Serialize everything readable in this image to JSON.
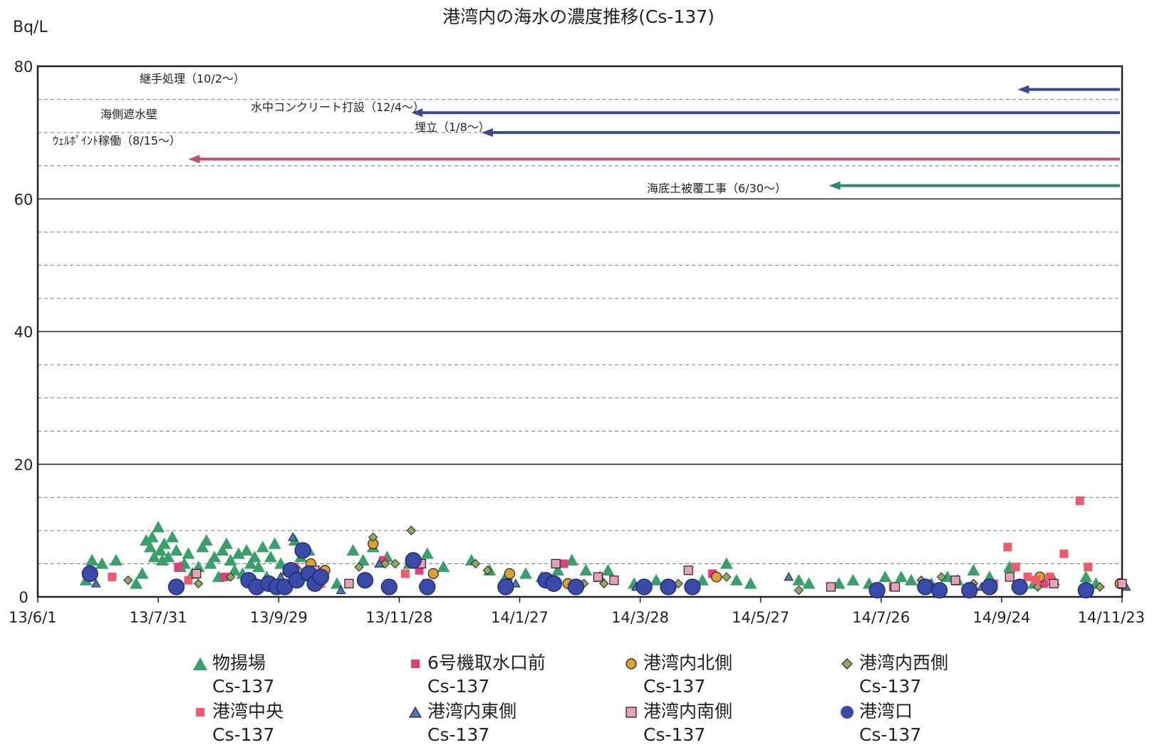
{
  "chart_data": {
    "type": "scatter",
    "title": "港湾内の海水の濃度推移(Cs-137)",
    "ylabel": "Bq/L",
    "ylim": [
      0,
      80
    ],
    "yticks": [
      "0",
      "20",
      "40",
      "60",
      "80"
    ],
    "xlim": [
      "2013-06-01",
      "2014-11-23"
    ],
    "xticks": [
      {
        "date": "2013-06-01",
        "label": "13/6/1"
      },
      {
        "date": "2013-07-31",
        "label": "13/7/31"
      },
      {
        "date": "2013-09-29",
        "label": "13/9/29"
      },
      {
        "date": "2013-11-28",
        "label": "13/11/28"
      },
      {
        "date": "2014-01-27",
        "label": "14/1/27"
      },
      {
        "date": "2014-03-28",
        "label": "14/3/28"
      },
      {
        "date": "2014-05-27",
        "label": "14/5/27"
      },
      {
        "date": "2014-07-26",
        "label": "14/7/26"
      },
      {
        "date": "2014-09-24",
        "label": "14/9/24"
      },
      {
        "date": "2014-11-23",
        "label": "14/11/23"
      }
    ],
    "grid": true,
    "legend_position": "bottom",
    "annotations": [
      {
        "text": "継手処理（10/2～）",
        "start_date": "2014-10-02",
        "y": 76.5,
        "color": "#3b4a8c"
      },
      {
        "text": "水中コンクリート打設（12/4～）",
        "start_date": "2013-12-04",
        "y": 73,
        "color": "#3b4a8c"
      },
      {
        "text": "埋立（1/8～）",
        "start_date": "2014-01-08",
        "y": 70,
        "color": "#3b4a8c"
      },
      {
        "text": "海側遮水壁",
        "start_date": "",
        "y": 73,
        "color": "#222222"
      },
      {
        "text": "ｳｪﾙﾎﾟｲﾝﾄ稼働（8/15～）",
        "start_date": "2013-08-15",
        "y": 66,
        "color": "#c0506a"
      },
      {
        "text": "海底土被覆工事（6/30～）",
        "start_date": "2014-06-30",
        "y": 62,
        "color": "#2e8b6a"
      }
    ],
    "series": [
      {
        "name": "物揚場",
        "unit_label": "Cs-137",
        "marker": "triangle",
        "color": "#3aa06a",
        "points": [
          [
            "2013-06-25",
            2.5
          ],
          [
            "2013-06-28",
            5.5
          ],
          [
            "2013-07-03",
            5
          ],
          [
            "2013-07-10",
            5.5
          ],
          [
            "2013-07-20",
            2
          ],
          [
            "2013-07-23",
            3.5
          ],
          [
            "2013-07-25",
            8.5
          ],
          [
            "2013-07-27",
            7.5
          ],
          [
            "2013-07-28",
            9
          ],
          [
            "2013-07-29",
            6
          ],
          [
            "2013-07-31",
            10.5
          ],
          [
            "2013-08-01",
            7
          ],
          [
            "2013-08-02",
            5.5
          ],
          [
            "2013-08-03",
            8
          ],
          [
            "2013-08-05",
            6
          ],
          [
            "2013-08-07",
            9
          ],
          [
            "2013-08-09",
            7
          ],
          [
            "2013-08-11",
            4.5
          ],
          [
            "2013-08-13",
            5
          ],
          [
            "2013-08-15",
            6.5
          ],
          [
            "2013-08-17",
            3.5
          ],
          [
            "2013-08-20",
            4.5
          ],
          [
            "2013-08-22",
            7.5
          ],
          [
            "2013-08-24",
            8.5
          ],
          [
            "2013-08-26",
            5
          ],
          [
            "2013-08-28",
            6
          ],
          [
            "2013-08-30",
            3
          ],
          [
            "2013-09-01",
            7
          ],
          [
            "2013-09-03",
            8
          ],
          [
            "2013-09-05",
            5.5
          ],
          [
            "2013-09-07",
            4
          ],
          [
            "2013-09-09",
            6.5
          ],
          [
            "2013-09-11",
            3.5
          ],
          [
            "2013-09-13",
            7
          ],
          [
            "2013-09-15",
            5
          ],
          [
            "2013-09-17",
            6
          ],
          [
            "2013-09-19",
            4.5
          ],
          [
            "2013-09-21",
            7.5
          ],
          [
            "2013-09-23",
            3
          ],
          [
            "2013-09-25",
            6
          ],
          [
            "2013-09-27",
            8
          ],
          [
            "2013-09-30",
            5
          ],
          [
            "2013-10-03",
            4
          ],
          [
            "2013-10-07",
            8.5
          ],
          [
            "2013-10-10",
            6
          ],
          [
            "2013-10-14",
            7
          ],
          [
            "2013-10-20",
            3
          ],
          [
            "2013-10-28",
            2
          ],
          [
            "2013-11-05",
            7
          ],
          [
            "2013-11-10",
            5.5
          ],
          [
            "2013-11-15",
            7.5
          ],
          [
            "2013-11-22",
            6
          ],
          [
            "2013-12-03",
            5
          ],
          [
            "2013-12-12",
            6.5
          ],
          [
            "2013-12-20",
            4.5
          ],
          [
            "2014-01-03",
            5.5
          ],
          [
            "2014-01-12",
            4
          ],
          [
            "2014-01-20",
            3
          ],
          [
            "2014-01-30",
            3.5
          ],
          [
            "2014-02-07",
            3
          ],
          [
            "2014-02-15",
            4
          ],
          [
            "2014-02-22",
            5.5
          ],
          [
            "2014-03-01",
            4
          ],
          [
            "2014-03-08",
            3
          ],
          [
            "2014-03-12",
            4
          ],
          [
            "2014-03-25",
            2
          ],
          [
            "2014-04-05",
            2.5
          ],
          [
            "2014-04-28",
            2.5
          ],
          [
            "2014-05-10",
            5
          ],
          [
            "2014-05-15",
            2.5
          ],
          [
            "2014-05-22",
            2
          ],
          [
            "2014-06-15",
            2.5
          ],
          [
            "2014-06-20",
            2
          ],
          [
            "2014-07-05",
            2
          ],
          [
            "2014-07-12",
            2.5
          ],
          [
            "2014-07-20",
            2
          ],
          [
            "2014-07-28",
            3
          ],
          [
            "2014-08-05",
            3
          ],
          [
            "2014-08-10",
            2.5
          ],
          [
            "2014-08-20",
            2
          ],
          [
            "2014-08-28",
            3
          ],
          [
            "2014-09-02",
            2.5
          ],
          [
            "2014-09-10",
            4
          ],
          [
            "2014-09-18",
            3
          ],
          [
            "2014-09-28",
            4.5
          ],
          [
            "2014-10-10",
            2
          ],
          [
            "2014-10-20",
            2.5
          ],
          [
            "2014-11-05",
            3
          ],
          [
            "2014-11-10",
            2
          ]
        ]
      },
      {
        "name": "6号機取水口前",
        "unit_label": "Cs-137",
        "marker": "square",
        "color": "#e0407a",
        "points": [
          [
            "2013-08-10",
            4.5
          ],
          [
            "2013-09-02",
            3
          ],
          [
            "2013-10-05",
            4
          ],
          [
            "2013-11-20",
            5.5
          ],
          [
            "2013-12-08",
            4
          ],
          [
            "2014-02-18",
            5
          ],
          [
            "2014-05-03",
            3.5
          ],
          [
            "2014-08-01",
            1.5
          ],
          [
            "2014-09-20",
            2
          ],
          [
            "2014-10-15",
            2
          ]
        ]
      },
      {
        "name": "港湾内北側",
        "unit_label": "Cs-137",
        "marker": "circle",
        "color": "#e0a030",
        "points": [
          [
            "2013-10-15",
            5
          ],
          [
            "2013-10-22",
            4
          ],
          [
            "2013-11-15",
            8
          ],
          [
            "2013-12-15",
            3.5
          ],
          [
            "2014-01-22",
            3.5
          ],
          [
            "2014-02-20",
            2
          ],
          [
            "2014-05-05",
            3
          ],
          [
            "2014-10-13",
            3
          ],
          [
            "2014-11-22",
            2
          ]
        ]
      },
      {
        "name": "港湾内西側",
        "unit_label": "Cs-137",
        "marker": "diamond",
        "color": "#8aaa60",
        "points": [
          [
            "2013-07-16",
            2.5
          ],
          [
            "2013-08-20",
            2
          ],
          [
            "2013-09-05",
            3
          ],
          [
            "2013-10-09",
            4
          ],
          [
            "2013-11-08",
            4.5
          ],
          [
            "2013-11-15",
            9
          ],
          [
            "2013-11-21",
            5
          ],
          [
            "2013-11-26",
            5
          ],
          [
            "2013-12-04",
            10
          ],
          [
            "2014-01-05",
            5
          ],
          [
            "2014-01-11",
            4
          ],
          [
            "2014-02-28",
            2
          ],
          [
            "2014-03-10",
            2
          ],
          [
            "2014-04-16",
            2
          ],
          [
            "2014-05-10",
            3
          ],
          [
            "2014-06-15",
            1
          ],
          [
            "2014-07-25",
            1.5
          ],
          [
            "2014-08-15",
            2.5
          ],
          [
            "2014-08-25",
            3
          ],
          [
            "2014-09-10",
            2
          ],
          [
            "2014-10-12",
            1.5
          ],
          [
            "2014-11-12",
            1.5
          ]
        ]
      },
      {
        "name": "港湾中央",
        "unit_label": "Cs-137",
        "marker": "square",
        "color": "#f05a6a",
        "points": [
          [
            "2013-07-08",
            3
          ],
          [
            "2013-08-15",
            2.5
          ],
          [
            "2013-10-07",
            4.5
          ],
          [
            "2013-10-20",
            2
          ],
          [
            "2013-11-10",
            2.5
          ],
          [
            "2013-12-01",
            3.5
          ],
          [
            "2014-09-27",
            7.5
          ],
          [
            "2014-10-01",
            4.5
          ],
          [
            "2014-10-07",
            3
          ],
          [
            "2014-10-11",
            2.5
          ],
          [
            "2014-10-18",
            3
          ],
          [
            "2014-10-25",
            6.5
          ],
          [
            "2014-11-02",
            14.5
          ],
          [
            "2014-11-06",
            4.5
          ]
        ]
      },
      {
        "name": "港湾内東側",
        "unit_label": "Cs-137",
        "marker": "triangle",
        "color": "#4a78c0",
        "points": [
          [
            "2013-06-30",
            2
          ],
          [
            "2013-09-30",
            3
          ],
          [
            "2013-10-06",
            9
          ],
          [
            "2013-10-30",
            1
          ],
          [
            "2013-11-18",
            5
          ],
          [
            "2013-12-10",
            2
          ],
          [
            "2014-01-25",
            2
          ],
          [
            "2014-03-26",
            1.5
          ],
          [
            "2014-06-10",
            3
          ],
          [
            "2014-09-14",
            1.5
          ],
          [
            "2014-11-25",
            1.5
          ]
        ]
      },
      {
        "name": "港湾内南側",
        "unit_label": "Cs-137",
        "marker": "square",
        "color": "#e8a0b8",
        "points": [
          [
            "2013-08-19",
            3.5
          ],
          [
            "2013-10-17",
            4
          ],
          [
            "2013-11-03",
            2
          ],
          [
            "2013-12-09",
            5
          ],
          [
            "2014-01-21",
            2
          ],
          [
            "2014-02-14",
            5
          ],
          [
            "2014-03-07",
            3
          ],
          [
            "2014-03-15",
            2.5
          ],
          [
            "2014-04-21",
            4
          ],
          [
            "2014-07-01",
            1.5
          ],
          [
            "2014-08-02",
            1.5
          ],
          [
            "2014-09-01",
            2.5
          ],
          [
            "2014-09-28",
            3
          ],
          [
            "2014-10-20",
            2
          ],
          [
            "2014-11-23",
            2
          ]
        ]
      },
      {
        "name": "港湾口",
        "unit_label": "Cs-137",
        "marker": "circle",
        "color": "#3a4aa8",
        "points": [
          [
            "2013-06-27",
            3.5
          ],
          [
            "2013-08-09",
            1.5
          ],
          [
            "2013-09-14",
            2.5
          ],
          [
            "2013-09-18",
            1.5
          ],
          [
            "2013-09-24",
            2
          ],
          [
            "2013-09-28",
            1.5
          ],
          [
            "2013-10-02",
            1.5
          ],
          [
            "2013-10-05",
            4
          ],
          [
            "2013-10-08",
            2.5
          ],
          [
            "2013-10-11",
            7
          ],
          [
            "2013-10-14",
            3.5
          ],
          [
            "2013-10-17",
            2
          ],
          [
            "2013-10-20",
            3
          ],
          [
            "2013-11-11",
            2.5
          ],
          [
            "2013-11-23",
            1.5
          ],
          [
            "2013-12-05",
            5.5
          ],
          [
            "2013-12-12",
            1.5
          ],
          [
            "2014-01-20",
            1.5
          ],
          [
            "2014-02-09",
            2.5
          ],
          [
            "2014-02-13",
            2
          ],
          [
            "2014-02-24",
            1.5
          ],
          [
            "2014-03-30",
            1.5
          ],
          [
            "2014-04-11",
            1.5
          ],
          [
            "2014-04-23",
            1.5
          ],
          [
            "2014-07-24",
            1
          ],
          [
            "2014-08-17",
            1.5
          ],
          [
            "2014-08-24",
            1
          ],
          [
            "2014-09-08",
            1
          ],
          [
            "2014-09-18",
            1.5
          ],
          [
            "2014-10-03",
            1.5
          ],
          [
            "2014-11-05",
            1
          ]
        ]
      }
    ]
  }
}
